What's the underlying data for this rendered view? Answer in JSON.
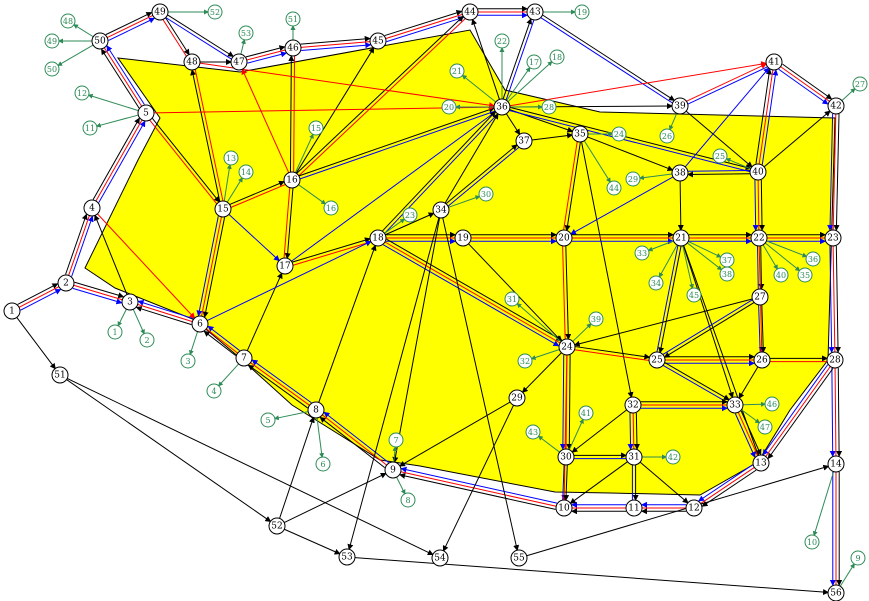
{
  "diagram": {
    "area_fill_color": "#ffff00",
    "colors": {
      "black": "#000000",
      "red": "#ff0000",
      "blue": "#0000ff",
      "green": "#2e8b57"
    },
    "nodes": [
      "1",
      "2",
      "3",
      "4",
      "5",
      "6",
      "7",
      "8",
      "9",
      "10",
      "11",
      "12",
      "13",
      "14",
      "15",
      "16",
      "17",
      "18",
      "19",
      "20",
      "21",
      "22",
      "23",
      "24",
      "25",
      "26",
      "27",
      "28",
      "29",
      "30",
      "31",
      "32",
      "33",
      "34",
      "35",
      "36",
      "37",
      "38",
      "39",
      "40",
      "41",
      "42",
      "43",
      "44",
      "45",
      "46",
      "47",
      "48",
      "49",
      "50",
      "51",
      "52",
      "53",
      "54",
      "55",
      "56"
    ],
    "tags": [
      "1",
      "2",
      "3",
      "4",
      "5",
      "6",
      "7",
      "8",
      "9",
      "10",
      "11",
      "12",
      "13",
      "14",
      "15",
      "16",
      "17",
      "18",
      "19",
      "20",
      "21",
      "22",
      "23",
      "24",
      "25",
      "26",
      "27",
      "28",
      "29",
      "30",
      "31",
      "32",
      "33",
      "34",
      "35",
      "36",
      "37",
      "38",
      "39",
      "40",
      "41",
      "42",
      "43",
      "44",
      "45",
      "46",
      "47",
      "48",
      "49",
      "50",
      "51",
      "52",
      "53"
    ],
    "edges": [
      {
        "a": "1",
        "b": "2",
        "colors": [
          "black",
          "red",
          "blue"
        ]
      },
      {
        "a": "2",
        "b": "4",
        "colors": [
          "black",
          "red",
          "blue"
        ]
      },
      {
        "a": "2",
        "b": "3",
        "colors": [
          "black",
          "red",
          "blue"
        ]
      },
      {
        "a": "3",
        "b": "4",
        "colors": [
          "black"
        ]
      },
      {
        "a": "4",
        "b": "5",
        "colors": [
          "black",
          "red",
          "blue"
        ]
      },
      {
        "a": "5",
        "b": "50",
        "colors": [
          "black",
          "red",
          "blue"
        ]
      },
      {
        "a": "50",
        "b": "49",
        "colors": [
          "black",
          "red",
          "blue"
        ]
      },
      {
        "a": "49",
        "b": "48",
        "colors": [
          "black",
          "red"
        ]
      },
      {
        "a": "49",
        "b": "47",
        "colors": [
          "black",
          "blue"
        ]
      },
      {
        "a": "48",
        "b": "47",
        "colors": [
          "black"
        ]
      },
      {
        "a": "47",
        "b": "46",
        "colors": [
          "black",
          "red",
          "blue"
        ]
      },
      {
        "a": "46",
        "b": "45",
        "colors": [
          "black",
          "red",
          "blue"
        ]
      },
      {
        "a": "45",
        "b": "44",
        "colors": [
          "black",
          "red",
          "blue"
        ]
      },
      {
        "a": "44",
        "b": "43",
        "colors": [
          "black",
          "red",
          "blue"
        ]
      },
      {
        "a": "43",
        "b": "39",
        "colors": [
          "black",
          "blue"
        ]
      },
      {
        "a": "39",
        "b": "41",
        "colors": [
          "red",
          "blue"
        ]
      },
      {
        "a": "41",
        "b": "42",
        "colors": [
          "black",
          "red",
          "blue"
        ]
      },
      {
        "a": "42",
        "b": "23",
        "colors": [
          "black",
          "red",
          "blue"
        ]
      },
      {
        "a": "23",
        "b": "28",
        "colors": [
          "black",
          "red",
          "blue"
        ]
      },
      {
        "a": "28",
        "b": "14",
        "colors": [
          "black",
          "red",
          "blue"
        ]
      },
      {
        "a": "14",
        "b": "56",
        "colors": [
          "black",
          "red",
          "blue"
        ]
      },
      {
        "a": "28",
        "b": "13",
        "colors": [
          "black",
          "red",
          "blue"
        ]
      },
      {
        "a": "13",
        "b": "12",
        "colors": [
          "black",
          "red",
          "blue"
        ]
      },
      {
        "a": "12",
        "b": "11",
        "colors": [
          "black",
          "red",
          "blue"
        ]
      },
      {
        "a": "11",
        "b": "10",
        "colors": [
          "black",
          "red",
          "blue"
        ]
      },
      {
        "a": "10",
        "b": "9",
        "colors": [
          "black",
          "red",
          "blue"
        ]
      },
      {
        "a": "9",
        "b": "8",
        "colors": [
          "black",
          "red",
          "blue"
        ]
      },
      {
        "a": "8",
        "b": "7",
        "colors": [
          "black",
          "red",
          "blue"
        ]
      },
      {
        "a": "7",
        "b": "6",
        "colors": [
          "black",
          "red",
          "blue"
        ]
      },
      {
        "a": "6",
        "b": "3",
        "colors": [
          "black",
          "red",
          "blue"
        ]
      },
      {
        "a": "4",
        "b": "6",
        "colors": [
          "red"
        ]
      },
      {
        "a": "5",
        "b": "15",
        "colors": [
          "black",
          "red"
        ]
      },
      {
        "a": "15",
        "b": "6",
        "colors": [
          "black",
          "red",
          "blue"
        ]
      },
      {
        "a": "15",
        "b": "16",
        "colors": [
          "black",
          "red"
        ]
      },
      {
        "a": "15",
        "b": "48",
        "colors": [
          "black",
          "red"
        ]
      },
      {
        "a": "15",
        "b": "17",
        "colors": [
          "blue"
        ]
      },
      {
        "a": "16",
        "b": "46",
        "colors": [
          "black",
          "red"
        ]
      },
      {
        "a": "16",
        "b": "47",
        "colors": [
          "red"
        ]
      },
      {
        "a": "16",
        "b": "17",
        "colors": [
          "black",
          "red"
        ]
      },
      {
        "a": "16",
        "b": "45",
        "colors": [
          "black"
        ]
      },
      {
        "a": "16",
        "b": "44",
        "colors": [
          "black",
          "red"
        ]
      },
      {
        "a": "16",
        "b": "36",
        "colors": [
          "black",
          "blue"
        ]
      },
      {
        "a": "17",
        "b": "18",
        "colors": [
          "black",
          "red"
        ]
      },
      {
        "a": "17",
        "b": "36",
        "colors": [
          "blue"
        ]
      },
      {
        "a": "7",
        "b": "17",
        "colors": [
          "black"
        ]
      },
      {
        "a": "8",
        "b": "18",
        "colors": [
          "black"
        ]
      },
      {
        "a": "18",
        "b": "19",
        "colors": [
          "black",
          "red",
          "blue"
        ]
      },
      {
        "a": "18",
        "b": "36",
        "colors": [
          "black",
          "blue"
        ]
      },
      {
        "a": "18",
        "b": "24",
        "colors": [
          "black",
          "red",
          "blue"
        ]
      },
      {
        "a": "18",
        "b": "34",
        "colors": [
          "black"
        ]
      },
      {
        "a": "6",
        "b": "18",
        "colors": [
          "blue"
        ]
      },
      {
        "a": "19",
        "b": "20",
        "colors": [
          "black",
          "red",
          "blue"
        ]
      },
      {
        "a": "19",
        "b": "24",
        "colors": [
          "black"
        ]
      },
      {
        "a": "34",
        "b": "37",
        "colors": [
          "black",
          "blue"
        ]
      },
      {
        "a": "34",
        "b": "36",
        "colors": [
          "black"
        ]
      },
      {
        "a": "34",
        "b": "9",
        "colors": [
          "black"
        ]
      },
      {
        "a": "34",
        "b": "53",
        "colors": [
          "black"
        ]
      },
      {
        "a": "34",
        "b": "55",
        "colors": [
          "black"
        ]
      },
      {
        "a": "36",
        "b": "37",
        "colors": [
          "black"
        ]
      },
      {
        "a": "36",
        "b": "35",
        "colors": [
          "black"
        ]
      },
      {
        "a": "36",
        "b": "39",
        "colors": [
          "black"
        ]
      },
      {
        "a": "36",
        "b": "43",
        "colors": [
          "black",
          "blue"
        ]
      },
      {
        "a": "36",
        "b": "44",
        "colors": [
          "black"
        ]
      },
      {
        "a": "36",
        "b": "40",
        "colors": [
          "black",
          "blue"
        ]
      },
      {
        "a": "36",
        "b": "41",
        "colors": [
          "red"
        ]
      },
      {
        "a": "5",
        "b": "36",
        "colors": [
          "red"
        ]
      },
      {
        "a": "48",
        "b": "36",
        "colors": [
          "red"
        ]
      },
      {
        "a": "37",
        "b": "35",
        "colors": [
          "black"
        ]
      },
      {
        "a": "35",
        "b": "20",
        "colors": [
          "black",
          "red"
        ]
      },
      {
        "a": "35",
        "b": "38",
        "colors": [
          "black"
        ]
      },
      {
        "a": "35",
        "b": "32",
        "colors": [
          "black"
        ]
      },
      {
        "a": "39",
        "b": "40",
        "colors": [
          "black"
        ]
      },
      {
        "a": "40",
        "b": "41",
        "colors": [
          "black",
          "red",
          "blue"
        ]
      },
      {
        "a": "40",
        "b": "42",
        "colors": [
          "black"
        ]
      },
      {
        "a": "40",
        "b": "38",
        "colors": [
          "black",
          "blue"
        ]
      },
      {
        "a": "40",
        "b": "22",
        "colors": [
          "black",
          "red",
          "blue"
        ]
      },
      {
        "a": "38",
        "b": "21",
        "colors": [
          "black"
        ]
      },
      {
        "a": "38",
        "b": "20",
        "colors": [
          "blue"
        ]
      },
      {
        "a": "38",
        "b": "41",
        "colors": [
          "blue"
        ]
      },
      {
        "a": "20",
        "b": "21",
        "colors": [
          "black",
          "red",
          "blue"
        ]
      },
      {
        "a": "20",
        "b": "24",
        "colors": [
          "black",
          "red"
        ]
      },
      {
        "a": "21",
        "b": "22",
        "colors": [
          "black",
          "red",
          "blue"
        ]
      },
      {
        "a": "21",
        "b": "25",
        "colors": [
          "black",
          "blue"
        ]
      },
      {
        "a": "21",
        "b": "33",
        "colors": [
          "black"
        ]
      },
      {
        "a": "21",
        "b": "13",
        "colors": [
          "black"
        ]
      },
      {
        "a": "22",
        "b": "23",
        "colors": [
          "black",
          "red",
          "blue"
        ]
      },
      {
        "a": "22",
        "b": "27",
        "colors": [
          "black",
          "blue"
        ]
      },
      {
        "a": "22",
        "b": "26",
        "colors": [
          "red"
        ]
      },
      {
        "a": "27",
        "b": "26",
        "colors": [
          "black",
          "blue"
        ]
      },
      {
        "a": "27",
        "b": "24",
        "colors": [
          "black"
        ]
      },
      {
        "a": "27",
        "b": "25",
        "colors": [
          "black",
          "blue"
        ]
      },
      {
        "a": "24",
        "b": "25",
        "colors": [
          "black",
          "red"
        ]
      },
      {
        "a": "24",
        "b": "30",
        "colors": [
          "black",
          "red",
          "blue"
        ]
      },
      {
        "a": "24",
        "b": "29",
        "colors": [
          "black"
        ]
      },
      {
        "a": "24",
        "b": "10",
        "colors": [
          "red"
        ]
      },
      {
        "a": "25",
        "b": "26",
        "colors": [
          "black",
          "red",
          "blue"
        ]
      },
      {
        "a": "25",
        "b": "33",
        "colors": [
          "black",
          "blue"
        ]
      },
      {
        "a": "26",
        "b": "28",
        "colors": [
          "black",
          "red"
        ]
      },
      {
        "a": "26",
        "b": "33",
        "colors": [
          "black"
        ]
      },
      {
        "a": "32",
        "b": "33",
        "colors": [
          "black",
          "red",
          "blue"
        ]
      },
      {
        "a": "32",
        "b": "31",
        "colors": [
          "black",
          "red",
          "blue"
        ]
      },
      {
        "a": "32",
        "b": "30",
        "colors": [
          "black"
        ]
      },
      {
        "a": "33",
        "b": "13",
        "colors": [
          "black",
          "red",
          "blue"
        ]
      },
      {
        "a": "30",
        "b": "31",
        "colors": [
          "black",
          "blue"
        ]
      },
      {
        "a": "30",
        "b": "10",
        "colors": [
          "black",
          "blue"
        ]
      },
      {
        "a": "31",
        "b": "11",
        "colors": [
          "black",
          "blue"
        ]
      },
      {
        "a": "31",
        "b": "10",
        "colors": [
          "black"
        ]
      },
      {
        "a": "31",
        "b": "12",
        "colors": [
          "black"
        ]
      },
      {
        "a": "29",
        "b": "9",
        "colors": [
          "black"
        ]
      },
      {
        "a": "29",
        "b": "54",
        "colors": [
          "black"
        ]
      },
      {
        "a": "1",
        "b": "51",
        "colors": [
          "black"
        ]
      },
      {
        "a": "51",
        "b": "52",
        "colors": [
          "black"
        ]
      },
      {
        "a": "51",
        "b": "54",
        "colors": [
          "black"
        ]
      },
      {
        "a": "52",
        "b": "8",
        "colors": [
          "black"
        ]
      },
      {
        "a": "52",
        "b": "53",
        "colors": [
          "black"
        ]
      },
      {
        "a": "52",
        "b": "9",
        "colors": [
          "black"
        ]
      },
      {
        "a": "53",
        "b": "56",
        "colors": [
          "black"
        ]
      },
      {
        "a": "55",
        "b": "14",
        "colors": [
          "black"
        ]
      }
    ],
    "tag_links": [
      {
        "tag": "1",
        "node": "3"
      },
      {
        "tag": "2",
        "node": "3"
      },
      {
        "tag": "3",
        "node": "6"
      },
      {
        "tag": "4",
        "node": "7"
      },
      {
        "tag": "5",
        "node": "8"
      },
      {
        "tag": "6",
        "node": "8"
      },
      {
        "tag": "7",
        "node": "9"
      },
      {
        "tag": "8",
        "node": "9"
      },
      {
        "tag": "9",
        "node": "56"
      },
      {
        "tag": "10",
        "node": "14"
      },
      {
        "tag": "11",
        "node": "5"
      },
      {
        "tag": "12",
        "node": "5"
      },
      {
        "tag": "13",
        "node": "15"
      },
      {
        "tag": "14",
        "node": "15"
      },
      {
        "tag": "15",
        "node": "16"
      },
      {
        "tag": "16",
        "node": "16"
      },
      {
        "tag": "17",
        "node": "36"
      },
      {
        "tag": "18",
        "node": "36"
      },
      {
        "tag": "19",
        "node": "43"
      },
      {
        "tag": "20",
        "node": "36"
      },
      {
        "tag": "21",
        "node": "36"
      },
      {
        "tag": "22",
        "node": "36"
      },
      {
        "tag": "23",
        "node": "18"
      },
      {
        "tag": "24",
        "node": "35"
      },
      {
        "tag": "25",
        "node": "40"
      },
      {
        "tag": "26",
        "node": "39"
      },
      {
        "tag": "27",
        "node": "42"
      },
      {
        "tag": "28",
        "node": "36"
      },
      {
        "tag": "29",
        "node": "38"
      },
      {
        "tag": "30",
        "node": "34"
      },
      {
        "tag": "31",
        "node": "24"
      },
      {
        "tag": "32",
        "node": "24"
      },
      {
        "tag": "33",
        "node": "21"
      },
      {
        "tag": "34",
        "node": "21"
      },
      {
        "tag": "35",
        "node": "22"
      },
      {
        "tag": "36",
        "node": "22"
      },
      {
        "tag": "37",
        "node": "21"
      },
      {
        "tag": "38",
        "node": "21"
      },
      {
        "tag": "39",
        "node": "24"
      },
      {
        "tag": "40",
        "node": "22"
      },
      {
        "tag": "41",
        "node": "30"
      },
      {
        "tag": "42",
        "node": "31"
      },
      {
        "tag": "43",
        "node": "30"
      },
      {
        "tag": "44",
        "node": "35"
      },
      {
        "tag": "45",
        "node": "21"
      },
      {
        "tag": "46",
        "node": "33"
      },
      {
        "tag": "47",
        "node": "33"
      },
      {
        "tag": "48",
        "node": "50"
      },
      {
        "tag": "49",
        "node": "50"
      },
      {
        "tag": "50",
        "node": "50"
      },
      {
        "tag": "51",
        "node": "46"
      },
      {
        "tag": "52",
        "node": "49"
      },
      {
        "tag": "53",
        "node": "47"
      }
    ]
  }
}
